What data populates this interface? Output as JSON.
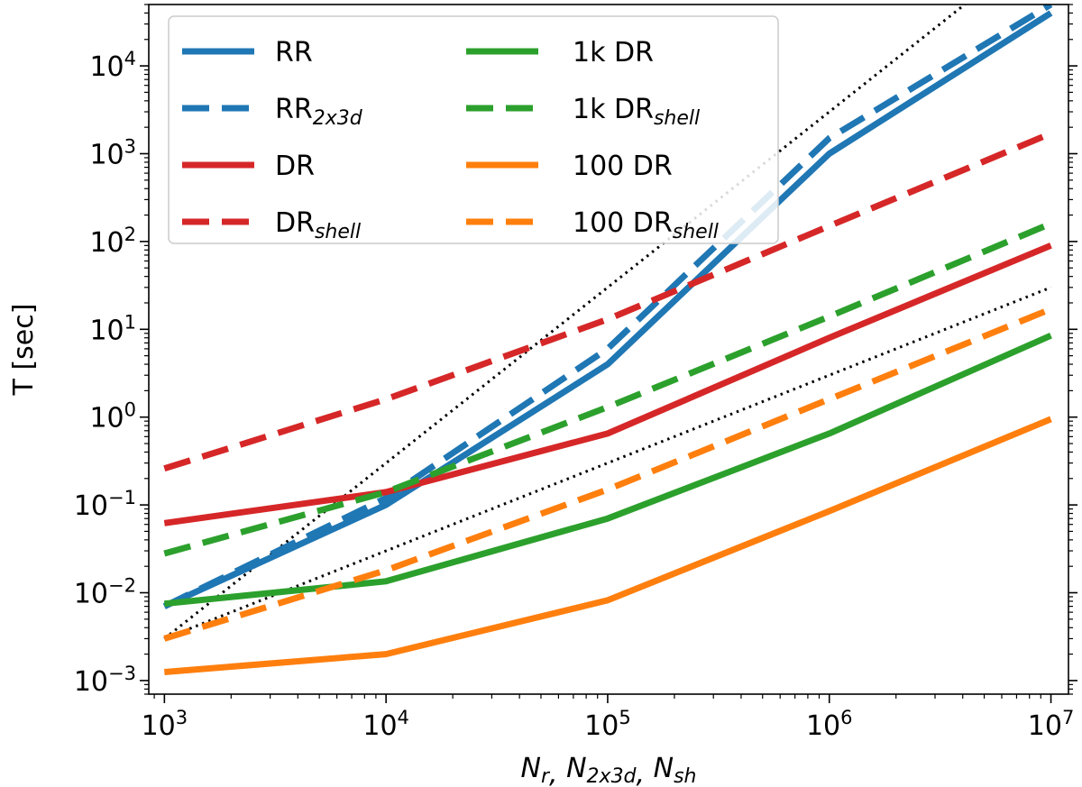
{
  "chart_data": {
    "type": "line",
    "xscale": "log",
    "yscale": "log",
    "xlim": [
      850,
      12000000
    ],
    "ylim": [
      0.0007,
      50000
    ],
    "xlabel": {
      "base": "N",
      "subs": [
        "r",
        "2x3d",
        "sh"
      ],
      "sep": ", "
    },
    "ylabel": "T [sec]",
    "xticks": [
      {
        "value": 1000,
        "base": "10",
        "exp": "3"
      },
      {
        "value": 10000,
        "base": "10",
        "exp": "4"
      },
      {
        "value": 100000,
        "base": "10",
        "exp": "5"
      },
      {
        "value": 1000000,
        "base": "10",
        "exp": "6"
      },
      {
        "value": 10000000,
        "base": "10",
        "exp": "7"
      }
    ],
    "yticks": [
      {
        "value": 0.001,
        "base": "10",
        "exp": "−3"
      },
      {
        "value": 0.01,
        "base": "10",
        "exp": "−2"
      },
      {
        "value": 0.1,
        "base": "10",
        "exp": "−1"
      },
      {
        "value": 1,
        "base": "10",
        "exp": "0"
      },
      {
        "value": 10,
        "base": "10",
        "exp": "1"
      },
      {
        "value": 100,
        "base": "10",
        "exp": "2"
      },
      {
        "value": 1000,
        "base": "10",
        "exp": "3"
      },
      {
        "value": 10000,
        "base": "10",
        "exp": "4"
      }
    ],
    "legend_position": "top-left",
    "series": [
      {
        "id": "rr",
        "label": "RR",
        "sub": "",
        "color": "#1f77b4",
        "style": "solid",
        "x": [
          1000,
          10000,
          100000,
          1000000,
          10000000
        ],
        "y": [
          0.007,
          0.1,
          4.0,
          1000,
          40000
        ]
      },
      {
        "id": "rr-2x3d",
        "label": "RR",
        "sub": "2x3d",
        "color": "#1f77b4",
        "style": "dashed",
        "x": [
          1000,
          10000,
          100000,
          1000000,
          10000000
        ],
        "y": [
          0.007,
          0.12,
          6.0,
          1500,
          50000
        ]
      },
      {
        "id": "dr",
        "label": "DR",
        "sub": "",
        "color": "#d62728",
        "style": "solid",
        "x": [
          1000,
          10000,
          100000,
          1000000,
          10000000
        ],
        "y": [
          0.062,
          0.14,
          0.65,
          8.0,
          90
        ]
      },
      {
        "id": "dr-shell",
        "label": "DR",
        "sub": "shell",
        "color": "#d62728",
        "style": "dashed",
        "x": [
          1000,
          10000,
          100000,
          1000000,
          10000000
        ],
        "y": [
          0.26,
          1.6,
          13,
          150,
          1700
        ]
      },
      {
        "id": "1k-dr",
        "label": "1k DR",
        "sub": "",
        "color": "#2ca02c",
        "style": "solid",
        "x": [
          1000,
          10000,
          100000,
          1000000,
          10000000
        ],
        "y": [
          0.0075,
          0.0135,
          0.07,
          0.65,
          8.5
        ]
      },
      {
        "id": "1k-dr-shell",
        "label": "1k DR",
        "sub": "shell",
        "color": "#2ca02c",
        "style": "dashed",
        "x": [
          1000,
          10000,
          100000,
          1000000,
          10000000
        ],
        "y": [
          0.028,
          0.14,
          1.3,
          14,
          160
        ]
      },
      {
        "id": "100-dr",
        "label": "100 DR",
        "sub": "",
        "color": "#ff7f0e",
        "style": "solid",
        "x": [
          1000,
          10000,
          100000,
          1000000,
          10000000
        ],
        "y": [
          0.00125,
          0.002,
          0.0082,
          0.085,
          0.95
        ]
      },
      {
        "id": "100-dr-shell",
        "label": "100 DR",
        "sub": "shell",
        "color": "#ff7f0e",
        "style": "dashed",
        "x": [
          1000,
          10000,
          100000,
          1000000,
          10000000
        ],
        "y": [
          0.003,
          0.018,
          0.15,
          1.6,
          17
        ]
      }
    ],
    "reference_lines": [
      {
        "id": "n-squared-guide",
        "color": "#000000",
        "style": "dotted",
        "x": [
          1000,
          8000000
        ],
        "y": [
          0.003,
          192000
        ]
      },
      {
        "id": "n-linear-guide",
        "color": "#000000",
        "style": "dotted",
        "x": [
          1000,
          10000000
        ],
        "y": [
          0.003,
          30
        ]
      }
    ]
  }
}
